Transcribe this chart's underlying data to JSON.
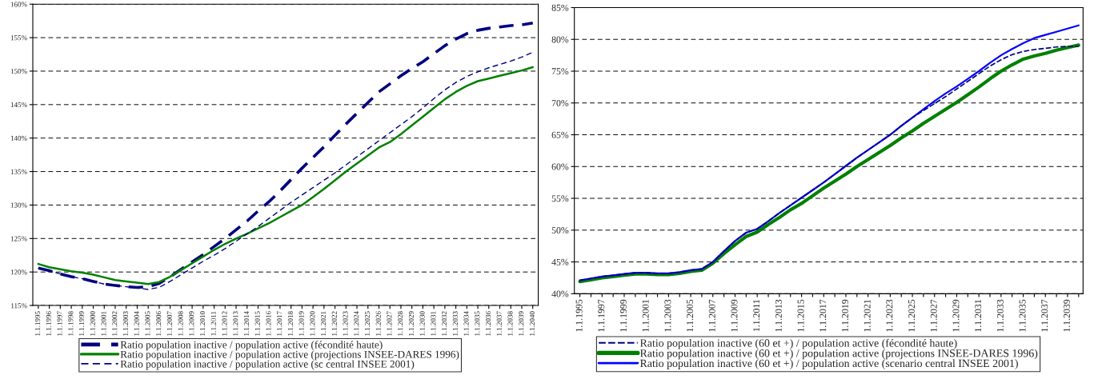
{
  "chart_data": [
    {
      "type": "line",
      "categories": [
        "1.1.1995",
        "1.1.1996",
        "1.1.1997",
        "1.1.1998",
        "1.1.1999",
        "1.1.2000",
        "1.1.2001",
        "1.1.2002",
        "1.1.2003",
        "1.1.2004",
        "1.1.2005",
        "1.1.2006",
        "1.1.2007",
        "1.1.2008",
        "1.1.2009",
        "1.1.2010",
        "1.1.2011",
        "1.1.2012",
        "1.1.2013",
        "1.1.2014",
        "1.1.2015",
        "1.1.2016",
        "1.1.2017",
        "1.1.2018",
        "1.1.2019",
        "1.1.2020",
        "1.1.2021",
        "1.1.2022",
        "1.1.2023",
        "1.1.2024",
        "1.1.2025",
        "1.1.2026",
        "1.1.2027",
        "1.1.2028",
        "1.1.2029",
        "1.1.2030",
        "1.1.2031",
        "1.1.2032",
        "1.1.2033",
        "1.1.2034",
        "1.1.2035",
        "1.1.2036",
        "1.1.2037",
        "1.1.2038",
        "1.1.2039",
        "1.1.2040"
      ],
      "series": [
        {
          "name": "Ratio population inactive / population active (fécondité haute)",
          "color": "#000080",
          "line_style": "dashed",
          "values": [
            120.6,
            120.2,
            119.7,
            119.3,
            119.0,
            118.6,
            118.2,
            118.0,
            117.8,
            117.7,
            117.8,
            118.3,
            119.3,
            120.4,
            121.5,
            122.6,
            123.8,
            125.0,
            126.3,
            127.6,
            129.1,
            130.5,
            132.1,
            133.8,
            135.5,
            137.1,
            138.7,
            140.4,
            142.1,
            143.7,
            145.3,
            146.9,
            148.1,
            149.3,
            150.4,
            151.4,
            152.6,
            153.8,
            154.8,
            155.6,
            156.1,
            156.4,
            156.6,
            156.8,
            156.9,
            157.2
          ]
        },
        {
          "name": "Ratio population inactive / population active (projections INSEE-DARES 1996)",
          "color": "#008000",
          "line_style": "solid",
          "values": [
            121.2,
            120.7,
            120.4,
            120.1,
            119.9,
            119.6,
            119.2,
            118.8,
            118.6,
            118.4,
            118.2,
            118.5,
            119.3,
            120.3,
            121.3,
            122.3,
            123.3,
            124.2,
            125.0,
            125.7,
            126.5,
            127.3,
            128.2,
            129.1,
            130.0,
            131.2,
            132.4,
            133.7,
            135.0,
            136.2,
            137.4,
            138.6,
            139.4,
            140.6,
            141.9,
            143.2,
            144.5,
            145.8,
            146.9,
            147.8,
            148.5,
            148.9,
            149.3,
            149.7,
            150.1,
            150.6
          ]
        },
        {
          "name": "Ratio population inactive / population active (sc central INSEE 2001)",
          "color": "#000080",
          "line_style": "dashed",
          "values": [
            120.6,
            120.2,
            119.7,
            119.3,
            119.0,
            118.6,
            118.2,
            118.0,
            117.8,
            117.6,
            117.4,
            117.7,
            118.6,
            119.6,
            120.6,
            121.6,
            122.5,
            123.5,
            124.6,
            125.7,
            126.8,
            128.0,
            129.2,
            130.4,
            131.5,
            132.6,
            133.7,
            134.8,
            136.0,
            137.2,
            138.4,
            139.6,
            140.8,
            142.0,
            143.2,
            144.5,
            145.9,
            147.2,
            148.3,
            149.2,
            149.9,
            150.5,
            151.0,
            151.5,
            152.1,
            152.8
          ]
        }
      ],
      "ylim": [
        115,
        160
      ],
      "yticks": [
        {
          "value": 115,
          "label": "115%"
        },
        {
          "value": 120,
          "label": "120%"
        },
        {
          "value": 125,
          "label": "125%"
        },
        {
          "value": 130,
          "label": "130%"
        },
        {
          "value": 135,
          "label": "135%"
        },
        {
          "value": 140,
          "label": "140%"
        },
        {
          "value": 145,
          "label": "145%"
        },
        {
          "value": 150,
          "label": "150%"
        },
        {
          "value": 155,
          "label": "155%"
        },
        {
          "value": 160,
          "label": "160%"
        }
      ],
      "grid": "y",
      "legend": "bottom"
    },
    {
      "type": "line",
      "categories": [
        "1.1.1995",
        null,
        "1.1.1997",
        null,
        "1.1.1999",
        null,
        "1.1.2001",
        null,
        "1.1.2003",
        null,
        "1.1.2005",
        null,
        "1.1.2007",
        null,
        "1.1.2009",
        null,
        "1.1.2011",
        null,
        "1.1.2013",
        null,
        "1.1.2015",
        null,
        "1.1.2017",
        null,
        "1.1.2019",
        null,
        "1.1.2021",
        null,
        "1.1.2023",
        null,
        "1.1.2025",
        null,
        "1.1.2027",
        null,
        "1.1.2029",
        null,
        "1.1.2031",
        null,
        "1.1.2033",
        null,
        "1.1.2035",
        null,
        "1.1.2037",
        null,
        "1.1.2039",
        null
      ],
      "series": [
        {
          "name": "Ratio population inactive (60 et +) / population active (fécondité haute)",
          "color": "#000080",
          "line_style": "dashed",
          "values": [
            42.1,
            42.4,
            42.7,
            42.9,
            43.1,
            43.3,
            43.3,
            43.2,
            43.2,
            43.4,
            43.7,
            43.9,
            45.0,
            46.7,
            48.3,
            49.6,
            50.2,
            51.4,
            52.7,
            53.9,
            55.1,
            56.3,
            57.5,
            58.8,
            60.1,
            61.4,
            62.6,
            63.8,
            65.0,
            66.4,
            67.7,
            68.8,
            69.9,
            71.0,
            72.2,
            73.4,
            74.6,
            75.8,
            76.8,
            77.6,
            78.1,
            78.4,
            78.6,
            78.8,
            78.9,
            78.9
          ]
        },
        {
          "name": "Ratio population inactive (60 et +) / population active (projections INSEE-DARES 1996)",
          "color": "#008000",
          "line_style": "solid",
          "values": [
            41.9,
            42.2,
            42.5,
            42.7,
            42.9,
            43.1,
            43.1,
            43.0,
            43.0,
            43.2,
            43.5,
            43.7,
            44.8,
            46.3,
            47.7,
            49.0,
            49.7,
            50.9,
            52.0,
            53.2,
            54.2,
            55.4,
            56.6,
            57.7,
            58.8,
            60.0,
            61.1,
            62.2,
            63.3,
            64.5,
            65.6,
            66.8,
            67.9,
            69.0,
            70.1,
            71.3,
            72.5,
            73.8,
            75.0,
            76.0,
            76.9,
            77.4,
            77.8,
            78.3,
            78.7,
            79.1
          ]
        },
        {
          "name": "Ratio population inactive (60 et +) / population active (scenario central INSEE 2001)",
          "color": "#0000ff",
          "line_style": "solid",
          "values": [
            42.1,
            42.4,
            42.7,
            42.9,
            43.1,
            43.3,
            43.3,
            43.2,
            43.2,
            43.4,
            43.7,
            43.9,
            45.0,
            46.7,
            48.3,
            49.6,
            50.2,
            51.4,
            52.7,
            53.9,
            55.1,
            56.3,
            57.5,
            58.8,
            60.1,
            61.4,
            62.6,
            63.8,
            65.0,
            66.4,
            67.7,
            69.0,
            70.3,
            71.5,
            72.6,
            73.8,
            75.0,
            76.3,
            77.5,
            78.5,
            79.4,
            80.2,
            80.7,
            81.2,
            81.7,
            82.2
          ]
        }
      ],
      "ylim": [
        40,
        85
      ],
      "yticks": [
        {
          "value": 40,
          "label": "40%"
        },
        {
          "value": 45,
          "label": "45%"
        },
        {
          "value": 50,
          "label": "50%"
        },
        {
          "value": 55,
          "label": "55%"
        },
        {
          "value": 60,
          "label": "60%"
        },
        {
          "value": 65,
          "label": "65%"
        },
        {
          "value": 70,
          "label": "70%"
        },
        {
          "value": 75,
          "label": "75%"
        },
        {
          "value": 80,
          "label": "80%"
        },
        {
          "value": 85,
          "label": "85%"
        }
      ],
      "grid": "y",
      "legend": "bottom"
    }
  ]
}
